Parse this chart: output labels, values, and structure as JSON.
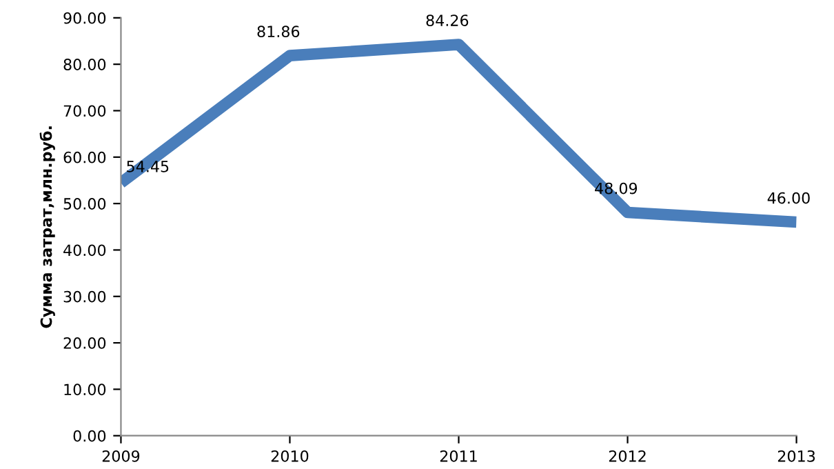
{
  "chart_data": {
    "type": "line",
    "ylabel": "Сумма затрат,млн.руб.",
    "categories": [
      "2009",
      "2010",
      "2011",
      "2012",
      "2013"
    ],
    "series": [
      {
        "color": "#4a7ebb",
        "values": [
          54.45,
          81.86,
          84.26,
          48.09,
          46.0
        ],
        "value_labels": [
          "54.45",
          "81.86",
          "84.26",
          "48.09",
          "46.00"
        ]
      }
    ],
    "ylim": [
      0,
      90
    ],
    "yticks": [
      {
        "value": 0,
        "label": "0.00"
      },
      {
        "value": 10,
        "label": "10.00"
      },
      {
        "value": 20,
        "label": "20.00"
      },
      {
        "value": 30,
        "label": "30.00"
      },
      {
        "value": 40,
        "label": "40.00"
      },
      {
        "value": 50,
        "label": "50.00"
      },
      {
        "value": 60,
        "label": "60.00"
      },
      {
        "value": 70,
        "label": "70.00"
      },
      {
        "value": 80,
        "label": "80.00"
      },
      {
        "value": 90,
        "label": "90.00"
      }
    ],
    "grid": false,
    "marker": "none",
    "line_style": "solid"
  }
}
